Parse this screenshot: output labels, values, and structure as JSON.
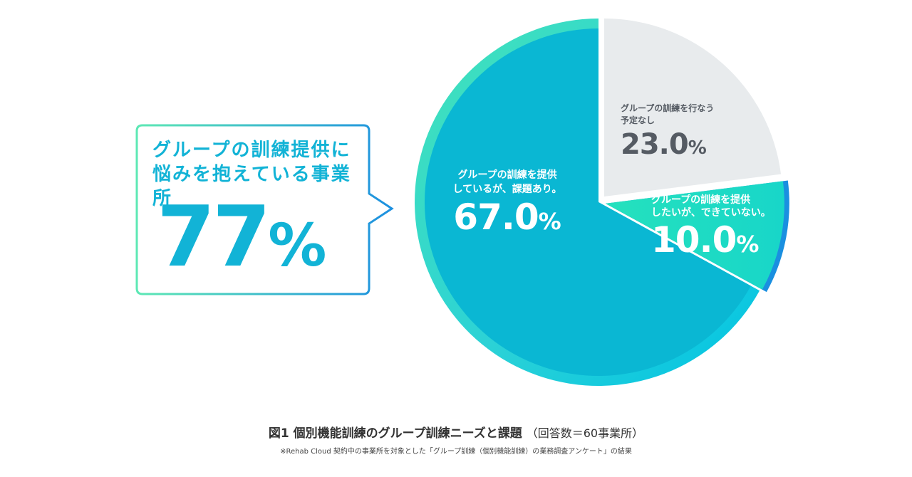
{
  "callout": {
    "line1": "グループの訓練提供に",
    "line2": "悩みを抱えている事業所",
    "value": "77",
    "unit": "%"
  },
  "chart_data": {
    "type": "pie",
    "slices": [
      {
        "label": "グループの訓練を提供しているが、課題あり。",
        "label_line1": "グループの訓練を提供",
        "label_line2": "しているが、課題あり。",
        "value": 67.0,
        "display": "67.0",
        "color": "#0ab7d3"
      },
      {
        "label": "グループの訓練を行なう予定なし",
        "label_line1": "グループの訓練を行なう",
        "label_line2": "予定なし",
        "value": 23.0,
        "display": "23.0",
        "color": "#e8ebed"
      },
      {
        "label": "グループの訓練を提供したいが、できていない。",
        "label_line1": "グループの訓練を提供",
        "label_line2": "したいが、できていない。",
        "value": 10.0,
        "display": "10.0",
        "color": "#1ddcc2"
      }
    ],
    "unit": "%",
    "start_angle_deg": 0,
    "direction": "counterclockwise",
    "accent_colors": {
      "ring_start": "#43e3b8",
      "ring_end": "#00c6e6",
      "ring_blue": "#1a8fe0"
    }
  },
  "caption": {
    "main": "図1 個別機能訓練のグループ訓練ニーズと課題",
    "paren": "（回答数＝60事業所）",
    "note": "※Rehab Cloud 契約中の事業所を対象とした「グループ訓練（個別機能訓練）の業務調査アンケート」の結果"
  }
}
